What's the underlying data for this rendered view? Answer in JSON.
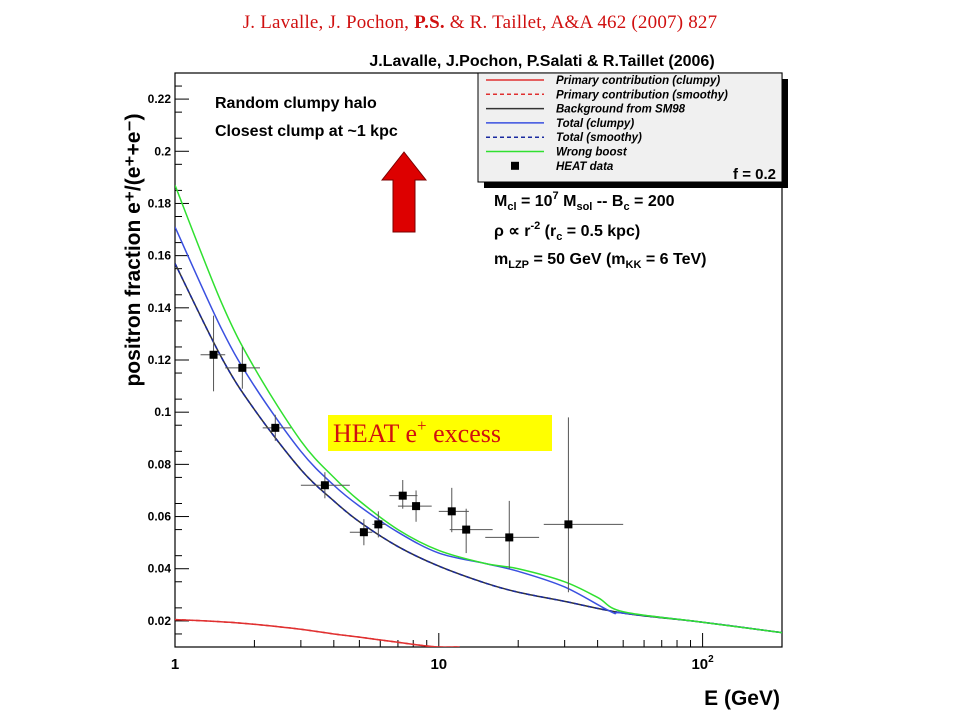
{
  "citation": {
    "authors_before": "J. Lavalle, J. Pochon, ",
    "authors_bold": "P.S.",
    "authors_after": " & R. Taillet, A&A 462 (2007) 827"
  },
  "chart_data": {
    "type": "line",
    "title": "J.Lavalle, J.Pochon, P.Salati & R.Taillet (2006)",
    "xlabel": "E (GeV)",
    "ylabel": "positron fraction e⁺/(e⁺+e⁻)",
    "xscale": "log",
    "xlim": [
      1,
      200
    ],
    "ylim": [
      0.01,
      0.23
    ],
    "grid": false,
    "legend_position": "top-right",
    "x_ticks": [
      {
        "value": 1,
        "label": "1"
      },
      {
        "value": 10,
        "label": "10"
      },
      {
        "value": 100,
        "label": "10²"
      }
    ],
    "y_ticks": [
      0.02,
      0.04,
      0.06,
      0.08,
      0.1,
      0.12,
      0.14,
      0.16,
      0.18,
      0.2,
      0.22
    ],
    "legend": [
      {
        "label": "Primary contribution (clumpy)",
        "color": "#e03030",
        "style": "solid"
      },
      {
        "label": "Primary contribution (smoothy)",
        "color": "#e03030",
        "style": "dashed"
      },
      {
        "label": "Background from SM98",
        "color": "#333333",
        "style": "solid"
      },
      {
        "label": "Total (clumpy)",
        "color": "#3a50e0",
        "style": "solid"
      },
      {
        "label": "Total (smoothy)",
        "color": "#1a2aa0",
        "style": "dashed"
      },
      {
        "label": "Wrong boost",
        "color": "#30e030",
        "style": "solid"
      },
      {
        "label": "HEAT data",
        "color": "#000000",
        "style": "marker"
      }
    ],
    "series": [
      {
        "name": "Primary contribution (clumpy)",
        "color": "#e03030",
        "dash": false,
        "x": [
          1,
          1.3,
          1.7,
          2.2,
          3,
          4,
          5,
          6,
          7,
          8,
          9,
          10,
          12
        ],
        "y": [
          0.0205,
          0.02,
          0.0193,
          0.0183,
          0.0168,
          0.015,
          0.0138,
          0.0127,
          0.0118,
          0.011,
          0.0104,
          0.01,
          0.01
        ]
      },
      {
        "name": "Primary contribution (smoothy)",
        "color": "#e03030",
        "dash": true,
        "x": [
          1,
          1.3,
          1.7,
          2.2,
          3,
          4,
          5,
          6,
          7,
          8,
          9,
          10,
          12
        ],
        "y": [
          0.0205,
          0.02,
          0.0193,
          0.0183,
          0.0168,
          0.015,
          0.0138,
          0.0127,
          0.0118,
          0.011,
          0.0104,
          0.01,
          0.01
        ]
      },
      {
        "name": "Background from SM98",
        "color": "#333333",
        "dash": false,
        "x": [
          1,
          1.5,
          2,
          3,
          4,
          5,
          7,
          10,
          15,
          20,
          30,
          50,
          100,
          200
        ],
        "y": [
          0.157,
          0.121,
          0.101,
          0.078,
          0.066,
          0.058,
          0.0485,
          0.041,
          0.0345,
          0.031,
          0.0275,
          0.023,
          0.0195,
          0.0155
        ]
      },
      {
        "name": "Total (smoothy)",
        "color": "#1a2aa0",
        "dash": true,
        "x": [
          1,
          1.5,
          2,
          3,
          4,
          5,
          7,
          10,
          15,
          20,
          30,
          50,
          100,
          200
        ],
        "y": [
          0.157,
          0.121,
          0.101,
          0.078,
          0.066,
          0.058,
          0.0485,
          0.041,
          0.0345,
          0.031,
          0.0275,
          0.023,
          0.0195,
          0.0155
        ]
      },
      {
        "name": "Total (clumpy)",
        "color": "#3a50e0",
        "dash": false,
        "x": [
          1,
          1.5,
          2,
          3,
          4,
          5,
          7,
          10,
          15,
          20,
          30,
          45,
          50,
          100,
          200
        ],
        "y": [
          0.171,
          0.132,
          0.11,
          0.085,
          0.072,
          0.064,
          0.054,
          0.046,
          0.042,
          0.039,
          0.033,
          0.0235,
          0.023,
          0.0195,
          0.0155
        ]
      },
      {
        "name": "Wrong boost",
        "color": "#30e030",
        "dash": false,
        "x": [
          1,
          1.5,
          2,
          3,
          4,
          5,
          7,
          10,
          15,
          20,
          30,
          40,
          50,
          100,
          200
        ],
        "y": [
          0.187,
          0.142,
          0.117,
          0.089,
          0.075,
          0.066,
          0.055,
          0.047,
          0.042,
          0.04,
          0.035,
          0.029,
          0.0235,
          0.0195,
          0.0155
        ]
      }
    ],
    "heat_data": [
      {
        "x": 1.4,
        "y": 0.122,
        "xlo": 1.25,
        "xhi": 1.55,
        "ylo": 0.108,
        "yhi": 0.137
      },
      {
        "x": 1.8,
        "y": 0.117,
        "xlo": 1.55,
        "xhi": 2.1,
        "ylo": 0.109,
        "yhi": 0.125
      },
      {
        "x": 2.4,
        "y": 0.094,
        "xlo": 2.15,
        "xhi": 2.75,
        "ylo": 0.089,
        "yhi": 0.099
      },
      {
        "x": 3.7,
        "y": 0.072,
        "xlo": 3.0,
        "xhi": 4.6,
        "ylo": 0.067,
        "yhi": 0.077
      },
      {
        "x": 5.2,
        "y": 0.054,
        "xlo": 4.6,
        "xhi": 5.6,
        "ylo": 0.049,
        "yhi": 0.059
      },
      {
        "x": 5.9,
        "y": 0.057,
        "xlo": 5.6,
        "xhi": 6.3,
        "ylo": 0.052,
        "yhi": 0.062
      },
      {
        "x": 7.3,
        "y": 0.068,
        "xlo": 6.5,
        "xhi": 8.3,
        "ylo": 0.063,
        "yhi": 0.074
      },
      {
        "x": 8.2,
        "y": 0.064,
        "xlo": 7.0,
        "xhi": 9.4,
        "ylo": 0.058,
        "yhi": 0.07
      },
      {
        "x": 11.2,
        "y": 0.062,
        "xlo": 10.0,
        "xhi": 13.0,
        "ylo": 0.054,
        "yhi": 0.071
      },
      {
        "x": 12.7,
        "y": 0.055,
        "xlo": 11.0,
        "xhi": 16.0,
        "ylo": 0.046,
        "yhi": 0.063
      },
      {
        "x": 18.5,
        "y": 0.052,
        "xlo": 15.0,
        "xhi": 24.0,
        "ylo": 0.04,
        "yhi": 0.066
      },
      {
        "x": 31.0,
        "y": 0.057,
        "xlo": 25.0,
        "xhi": 50.0,
        "ylo": 0.031,
        "yhi": 0.098
      }
    ],
    "annotations": {
      "halo_line1": "Random clumpy halo",
      "halo_line2": "Closest clump at ~1 kpc",
      "f_label": "f = 0.2",
      "params_line1_a": "M",
      "params_line1_sub1": "cl",
      "params_line1_b": " = 10",
      "params_line1_sup": "7",
      "params_line1_c": " M",
      "params_line1_sub2": "sol",
      "params_line1_d": " -- B",
      "params_line1_sub3": "c",
      "params_line1_e": " = 200",
      "params_line2_a": "ρ ∝ r",
      "params_line2_sup": "-2",
      "params_line2_b": " (r",
      "params_line2_sub": "c",
      "params_line2_c": " = 0.5 kpc)",
      "params_line3_a": "m",
      "params_line3_sub1": "LZP",
      "params_line3_b": " = 50 GeV (m",
      "params_line3_sub2": "KK",
      "params_line3_c": " = 6 TeV)",
      "excess_label_a": "HEAT e",
      "excess_label_sup": "+",
      "excess_label_b": " excess",
      "excess_highlight_color": "#ffff00",
      "arrow_color": "#dd0000"
    }
  }
}
